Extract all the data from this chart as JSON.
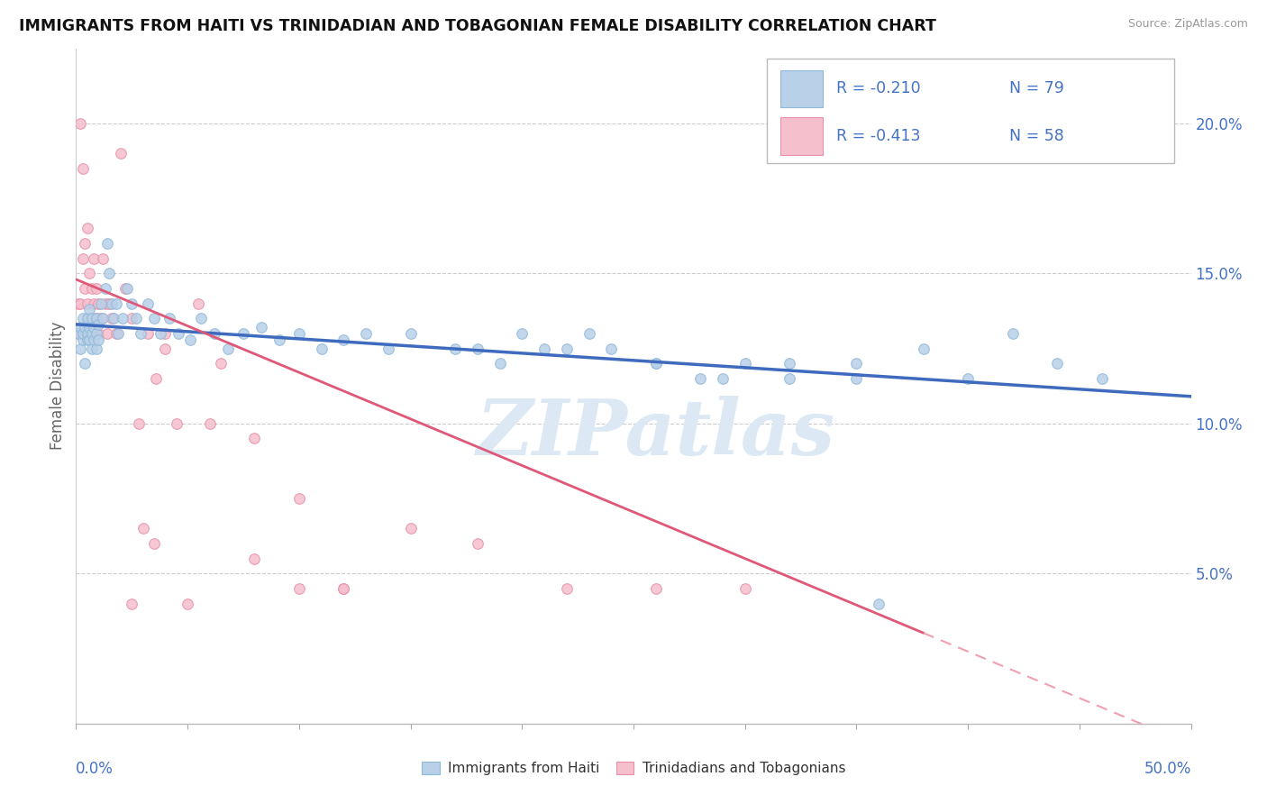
{
  "title": "IMMIGRANTS FROM HAITI VS TRINIDADIAN AND TOBAGONIAN FEMALE DISABILITY CORRELATION CHART",
  "source": "Source: ZipAtlas.com",
  "ylabel": "Female Disability",
  "xmin": 0.0,
  "xmax": 0.5,
  "ymin": 0.0,
  "ymax": 0.225,
  "yticks": [
    0.0,
    0.05,
    0.1,
    0.15,
    0.2
  ],
  "ytick_labels": [
    "",
    "5.0%",
    "10.0%",
    "15.0%",
    "20.0%"
  ],
  "haiti_color": "#b8d0e8",
  "haiti_edge_color": "#90b8d8",
  "tnt_color": "#f5bfcc",
  "tnt_edge_color": "#e890a8",
  "trend_haiti_color": "#3f6bbf",
  "trend_tnt_solid_color": "#e05878",
  "trend_tnt_dash_color": "#f0a0b0",
  "r_color": "#4472c4",
  "watermark": "ZIPatlas",
  "legend_r_haiti": "R = -0.210",
  "legend_n_haiti": "N = 79",
  "legend_r_tnt": "R = -0.413",
  "legend_n_tnt": "N = 58",
  "haiti_x": [
    0.001,
    0.002,
    0.002,
    0.003,
    0.003,
    0.003,
    0.004,
    0.004,
    0.005,
    0.005,
    0.005,
    0.006,
    0.006,
    0.006,
    0.007,
    0.007,
    0.007,
    0.008,
    0.008,
    0.009,
    0.009,
    0.009,
    0.01,
    0.01,
    0.011,
    0.012,
    0.013,
    0.014,
    0.015,
    0.016,
    0.017,
    0.018,
    0.019,
    0.021,
    0.023,
    0.025,
    0.027,
    0.029,
    0.032,
    0.035,
    0.038,
    0.042,
    0.046,
    0.051,
    0.056,
    0.062,
    0.068,
    0.075,
    0.083,
    0.091,
    0.1,
    0.11,
    0.12,
    0.13,
    0.14,
    0.15,
    0.17,
    0.19,
    0.21,
    0.23,
    0.26,
    0.29,
    0.32,
    0.35,
    0.38,
    0.42,
    0.46,
    0.35,
    0.4,
    0.44,
    0.28,
    0.3,
    0.32,
    0.24,
    0.26,
    0.22,
    0.2,
    0.18,
    0.36
  ],
  "haiti_y": [
    0.13,
    0.125,
    0.132,
    0.128,
    0.135,
    0.13,
    0.12,
    0.132,
    0.128,
    0.135,
    0.13,
    0.132,
    0.138,
    0.128,
    0.125,
    0.13,
    0.135,
    0.128,
    0.132,
    0.125,
    0.13,
    0.135,
    0.128,
    0.133,
    0.14,
    0.135,
    0.145,
    0.16,
    0.15,
    0.14,
    0.135,
    0.14,
    0.13,
    0.135,
    0.145,
    0.14,
    0.135,
    0.13,
    0.14,
    0.135,
    0.13,
    0.135,
    0.13,
    0.128,
    0.135,
    0.13,
    0.125,
    0.13,
    0.132,
    0.128,
    0.13,
    0.125,
    0.128,
    0.13,
    0.125,
    0.13,
    0.125,
    0.12,
    0.125,
    0.13,
    0.12,
    0.115,
    0.12,
    0.115,
    0.125,
    0.13,
    0.115,
    0.12,
    0.115,
    0.12,
    0.115,
    0.12,
    0.115,
    0.125,
    0.12,
    0.125,
    0.13,
    0.125,
    0.04
  ],
  "tnt_x": [
    0.001,
    0.001,
    0.002,
    0.002,
    0.002,
    0.003,
    0.003,
    0.003,
    0.004,
    0.004,
    0.005,
    0.005,
    0.005,
    0.006,
    0.006,
    0.007,
    0.007,
    0.008,
    0.008,
    0.008,
    0.009,
    0.009,
    0.01,
    0.01,
    0.011,
    0.012,
    0.013,
    0.014,
    0.015,
    0.016,
    0.018,
    0.02,
    0.022,
    0.025,
    0.028,
    0.032,
    0.036,
    0.04,
    0.045,
    0.055,
    0.065,
    0.08,
    0.1,
    0.12,
    0.15,
    0.18,
    0.22,
    0.26,
    0.3,
    0.03,
    0.025,
    0.035,
    0.04,
    0.05,
    0.06,
    0.08,
    0.1,
    0.12
  ],
  "tnt_y": [
    0.13,
    0.14,
    0.13,
    0.14,
    0.2,
    0.185,
    0.155,
    0.13,
    0.16,
    0.145,
    0.165,
    0.14,
    0.13,
    0.15,
    0.135,
    0.145,
    0.135,
    0.14,
    0.155,
    0.13,
    0.145,
    0.135,
    0.14,
    0.13,
    0.135,
    0.155,
    0.14,
    0.13,
    0.14,
    0.135,
    0.13,
    0.19,
    0.145,
    0.135,
    0.1,
    0.13,
    0.115,
    0.125,
    0.1,
    0.14,
    0.12,
    0.095,
    0.075,
    0.045,
    0.065,
    0.06,
    0.045,
    0.045,
    0.045,
    0.065,
    0.04,
    0.06,
    0.13,
    0.04,
    0.1,
    0.055,
    0.045,
    0.045
  ],
  "tnt_trend_solid_xmax": 0.38,
  "haiti_trend_intercept": 0.133,
  "haiti_trend_slope": -0.048,
  "tnt_trend_intercept": 0.148,
  "tnt_trend_slope": -0.31
}
